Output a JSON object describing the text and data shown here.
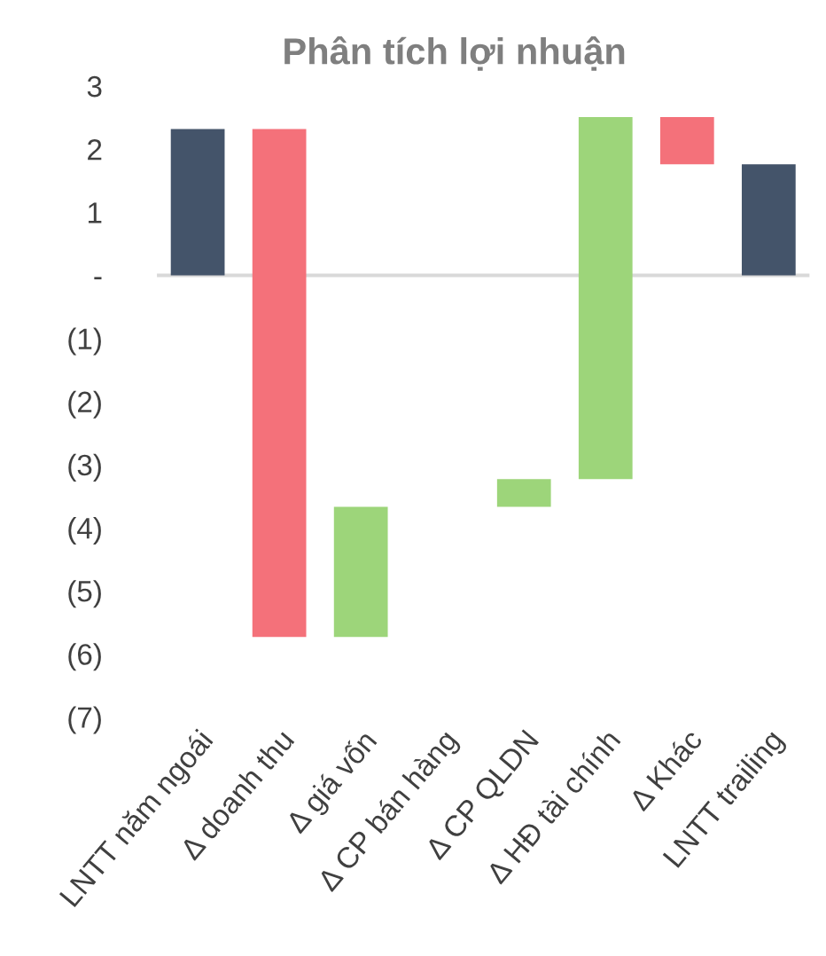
{
  "chart_data": {
    "type": "bar",
    "title": "Phân tích lợi nhuận",
    "categories": [
      "LNTT năm ngoái",
      "Δ doanh thu",
      "Δ giá vốn",
      "Δ CP bán hàng",
      "Δ CP QLDN",
      "Δ HĐ tài chính",
      "Δ Khác",
      "LNTT trailing"
    ],
    "base": [
      0,
      2.32,
      -5.73,
      null,
      -3.67,
      -3.23,
      2.51,
      0
    ],
    "values": [
      2.32,
      -8.05,
      2.06,
      0,
      0.44,
      5.74,
      -0.75,
      1.76
    ],
    "colors": [
      "#44546a",
      "#f4717a",
      "#9dd57a",
      "#9dd57a",
      "#9dd57a",
      "#9dd57a",
      "#f4717a",
      "#44546a"
    ],
    "ylim": [
      -7,
      3
    ],
    "yticks": [
      3,
      2,
      1,
      {
        "value": 0,
        "label": "-"
      },
      {
        "value": -1,
        "label": "(1)"
      },
      {
        "value": -2,
        "label": "(2)"
      },
      {
        "value": -3,
        "label": "(3)"
      },
      {
        "value": -4,
        "label": "(4)"
      },
      {
        "value": -5,
        "label": "(5)"
      },
      {
        "value": -6,
        "label": "(6)"
      },
      {
        "value": -7,
        "label": "(7)"
      }
    ],
    "ref_lines": [
      {
        "axis": "y",
        "value": 0,
        "color": "#d9d9d9"
      }
    ],
    "grid": false,
    "legend": false
  }
}
